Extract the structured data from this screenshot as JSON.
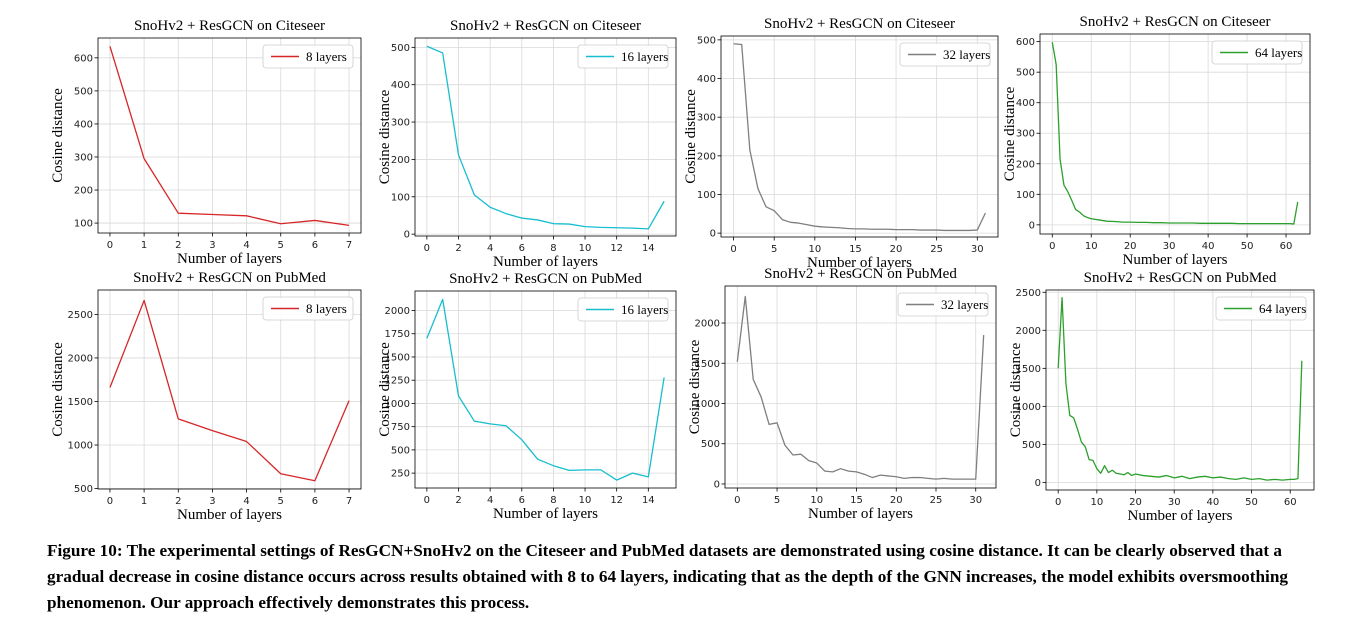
{
  "caption": "Figure 10: The experimental settings of ResGCN+SnoHv2 on the Citeseer and PubMed datasets are demonstrated using cosine distance. It can be clearly observed that a gradual decrease in cosine distance occurs across results obtained with 8 to 64 layers, indicating that as the depth of the GNN increases, the model exhibits oversmoothing phenomenon. Our approach effectively demonstrates this process.",
  "colors": {
    "red": "#d62728",
    "cyan": "#17becf",
    "gray": "#7f7f7f",
    "green": "#2ca02c"
  },
  "chart_data": [
    {
      "type": "line",
      "title": "SnoHv2 + ResGCN on Citeseer",
      "xlabel": "Number of layers",
      "ylabel": "Cosine distance",
      "xlim": [
        -0.35,
        7.35
      ],
      "ylim": [
        70,
        660
      ],
      "xticks": [
        0,
        1,
        2,
        3,
        4,
        5,
        6,
        7
      ],
      "yticks": [
        100,
        200,
        300,
        400,
        500,
        600
      ],
      "legend_loc": "top-right",
      "grid": true,
      "color": "red",
      "series": [
        {
          "name": "8 layers",
          "x": [
            0,
            1,
            2,
            3,
            4,
            5,
            6,
            7
          ],
          "y": [
            635,
            295,
            130,
            126,
            122,
            98,
            108,
            93
          ]
        }
      ]
    },
    {
      "type": "line",
      "title": "SnoHv2 + ResGCN on Citeseer",
      "xlabel": "Number of layers",
      "ylabel": "Cosine distance",
      "xlim": [
        -0.75,
        15.75
      ],
      "ylim": [
        -5,
        525
      ],
      "xticks": [
        0,
        2,
        4,
        6,
        8,
        10,
        12,
        14
      ],
      "yticks": [
        0,
        100,
        200,
        300,
        400,
        500
      ],
      "legend_loc": "top-right",
      "grid": true,
      "color": "cyan",
      "series": [
        {
          "name": "16 layers",
          "x": [
            0,
            1,
            2,
            3,
            4,
            5,
            6,
            7,
            8,
            9,
            10,
            11,
            12,
            13,
            14,
            15
          ],
          "y": [
            503,
            485,
            212,
            105,
            72,
            55,
            43,
            38,
            28,
            27,
            20,
            18,
            17,
            16,
            14,
            88
          ]
        }
      ]
    },
    {
      "type": "line",
      "title": "SnoHv2 + ResGCN on Citeseer",
      "xlabel": "Number of layers",
      "ylabel": "Cosine distance",
      "xlim": [
        -1.55,
        32.55
      ],
      "ylim": [
        -10,
        510
      ],
      "xticks": [
        0,
        5,
        10,
        15,
        20,
        25,
        30
      ],
      "yticks": [
        0,
        100,
        200,
        300,
        400,
        500
      ],
      "legend_loc": "top-right",
      "grid": true,
      "color": "gray",
      "series": [
        {
          "name": "32 layers",
          "x": [
            0,
            1,
            2,
            3,
            4,
            5,
            6,
            7,
            8,
            9,
            10,
            11,
            12,
            13,
            14,
            15,
            16,
            17,
            18,
            19,
            20,
            21,
            22,
            23,
            24,
            25,
            26,
            27,
            28,
            29,
            30,
            31
          ],
          "y": [
            490,
            488,
            215,
            115,
            68,
            58,
            35,
            28,
            26,
            22,
            18,
            16,
            15,
            14,
            12,
            11,
            11,
            10,
            10,
            10,
            9,
            9,
            9,
            8,
            8,
            8,
            7,
            7,
            7,
            7,
            8,
            52
          ]
        }
      ]
    },
    {
      "type": "line",
      "title": "SnoHv2 + ResGCN on Citeseer",
      "xlabel": "Number of layers",
      "ylabel": "Cosine distance",
      "xlim": [
        -3.15,
        66.15
      ],
      "ylim": [
        -30,
        625
      ],
      "xticks": [
        0,
        10,
        20,
        30,
        40,
        50,
        60
      ],
      "yticks": [
        0,
        100,
        200,
        300,
        400,
        500,
        600
      ],
      "legend_loc": "top-right",
      "grid": true,
      "color": "green",
      "series": [
        {
          "name": "64 layers",
          "x": [
            0,
            1,
            2,
            3,
            4,
            5,
            6,
            7,
            8,
            9,
            10,
            12,
            14,
            16,
            18,
            20,
            22,
            24,
            26,
            28,
            30,
            32,
            34,
            36,
            38,
            40,
            42,
            44,
            46,
            48,
            50,
            52,
            54,
            56,
            58,
            60,
            61,
            62,
            63
          ],
          "y": [
            598,
            525,
            215,
            130,
            108,
            80,
            50,
            42,
            30,
            24,
            20,
            16,
            12,
            11,
            9,
            9,
            8,
            8,
            7,
            7,
            6,
            6,
            6,
            6,
            5,
            5,
            5,
            5,
            5,
            4,
            4,
            4,
            4,
            4,
            4,
            4,
            4,
            3,
            75
          ]
        }
      ]
    },
    {
      "type": "line",
      "title": "SnoHv2 + ResGCN on PubMed",
      "xlabel": "Number of layers",
      "ylabel": "Cosine distance",
      "xlim": [
        -0.35,
        7.35
      ],
      "ylim": [
        495,
        2780
      ],
      "xticks": [
        0,
        1,
        2,
        3,
        4,
        5,
        6,
        7
      ],
      "yticks": [
        500,
        1000,
        1500,
        2000,
        2500
      ],
      "legend_loc": "top-right",
      "grid": true,
      "color": "red",
      "series": [
        {
          "name": "8 layers",
          "x": [
            0,
            1,
            2,
            3,
            4,
            5,
            6,
            7
          ],
          "y": [
            1660,
            2660,
            1300,
            1165,
            1040,
            670,
            590,
            1510
          ]
        }
      ]
    },
    {
      "type": "line",
      "title": "SnoHv2 + ResGCN on PubMed",
      "xlabel": "Number of layers",
      "ylabel": "Cosine distance",
      "xlim": [
        -0.75,
        15.75
      ],
      "ylim": [
        90,
        2210
      ],
      "xticks": [
        0,
        2,
        4,
        6,
        8,
        10,
        12,
        14
      ],
      "yticks": [
        250,
        500,
        750,
        1000,
        1250,
        1500,
        1750,
        2000
      ],
      "legend_loc": "top-right",
      "grid": true,
      "color": "cyan",
      "series": [
        {
          "name": "16 layers",
          "x": [
            0,
            1,
            2,
            3,
            4,
            5,
            6,
            7,
            8,
            9,
            10,
            11,
            12,
            13,
            14,
            15
          ],
          "y": [
            1700,
            2120,
            1080,
            810,
            780,
            760,
            610,
            400,
            330,
            280,
            285,
            285,
            175,
            250,
            210,
            1280
          ]
        }
      ]
    },
    {
      "type": "line",
      "title": "SnoHv2 + ResGCN on PubMed",
      "xlabel": "Number of layers",
      "ylabel": "Cosine distance",
      "xlim": [
        -1.55,
        32.55
      ],
      "ylim": [
        -50,
        2460
      ],
      "xticks": [
        0,
        5,
        10,
        15,
        20,
        25,
        30
      ],
      "yticks": [
        0,
        500,
        1000,
        1500,
        2000
      ],
      "legend_loc": "top-right",
      "grid": true,
      "color": "gray",
      "series": [
        {
          "name": "32 layers",
          "x": [
            0,
            1,
            2,
            3,
            4,
            5,
            6,
            7,
            8,
            9,
            10,
            11,
            12,
            13,
            14,
            15,
            16,
            17,
            18,
            19,
            20,
            21,
            22,
            23,
            24,
            25,
            26,
            27,
            28,
            29,
            30,
            31
          ],
          "y": [
            1520,
            2330,
            1300,
            1080,
            740,
            760,
            480,
            360,
            370,
            290,
            260,
            160,
            150,
            190,
            160,
            150,
            120,
            80,
            110,
            100,
            90,
            70,
            80,
            80,
            70,
            60,
            70,
            60,
            60,
            60,
            60,
            1850
          ]
        }
      ]
    },
    {
      "type": "line",
      "title": "SnoHv2 + ResGCN on PubMed",
      "xlabel": "Number of layers",
      "ylabel": "Cosine distance",
      "xlim": [
        -3.15,
        66.15
      ],
      "ylim": [
        -100,
        2530
      ],
      "xticks": [
        0,
        10,
        20,
        30,
        40,
        50,
        60
      ],
      "yticks": [
        0,
        500,
        1000,
        1500,
        2000,
        2500
      ],
      "legend_loc": "top-right",
      "grid": true,
      "color": "green",
      "series": [
        {
          "name": "64 layers",
          "x": [
            0,
            1,
            2,
            3,
            4,
            5,
            6,
            7,
            8,
            9,
            10,
            11,
            12,
            13,
            14,
            15,
            16,
            17,
            18,
            19,
            20,
            22,
            24,
            26,
            28,
            30,
            32,
            34,
            36,
            38,
            40,
            42,
            44,
            46,
            48,
            50,
            52,
            54,
            56,
            58,
            60,
            61,
            62,
            63
          ],
          "y": [
            1500,
            2430,
            1300,
            880,
            850,
            700,
            530,
            470,
            300,
            290,
            180,
            120,
            220,
            130,
            160,
            120,
            110,
            100,
            130,
            90,
            110,
            90,
            80,
            70,
            90,
            60,
            80,
            50,
            70,
            80,
            60,
            70,
            50,
            40,
            60,
            40,
            50,
            30,
            40,
            30,
            40,
            40,
            50,
            1600
          ]
        }
      ]
    }
  ]
}
